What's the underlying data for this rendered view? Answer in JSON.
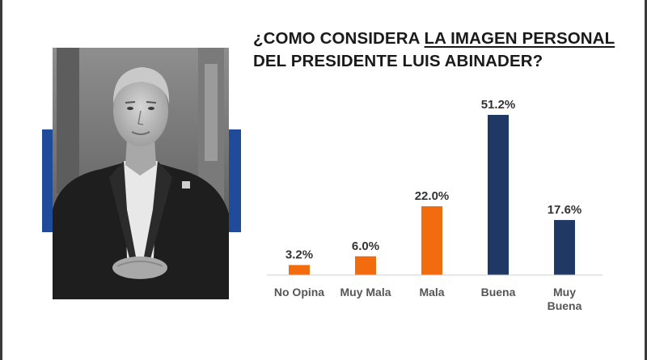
{
  "title": {
    "line1_prefix": "¿COMO CONSIDERA ",
    "line1_highlight": "LA IMAGEN PERSONAL",
    "line2": "DEL PRESIDENTE LUIS ABINADER?"
  },
  "photo": {
    "subject": "portrait-photo"
  },
  "colors": {
    "accent": "#1f4b99",
    "orange": "#f26b0f",
    "navy": "#1f3864"
  },
  "chart_data": {
    "type": "bar",
    "title": "¿COMO CONSIDERA LA IMAGEN PERSONAL DEL PRESIDENTE LUIS ABINADER?",
    "xlabel": "",
    "ylabel": "",
    "categories": [
      "No Opina",
      "Muy Mala",
      "Mala",
      "Buena",
      "Muy Buena"
    ],
    "values": [
      3.2,
      6.0,
      22.0,
      51.2,
      17.6
    ],
    "data_labels": [
      "3.2%",
      "6.0%",
      "22.0%",
      "51.2%",
      "17.6%"
    ],
    "bar_colors": [
      "#f26b0f",
      "#f26b0f",
      "#f26b0f",
      "#1f3864",
      "#1f3864"
    ],
    "ylim": [
      0,
      51.2
    ],
    "grid": false,
    "legend": "none"
  }
}
